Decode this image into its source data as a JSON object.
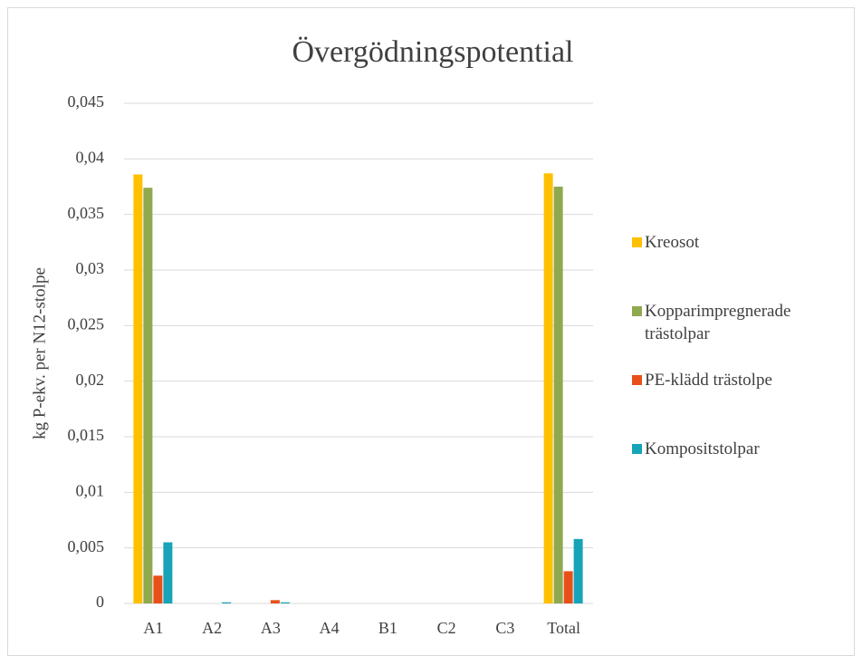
{
  "chart_data": {
    "type": "bar",
    "title": "Övergödningspotential",
    "y_label": "kg P-ekv. per N12-stolpe",
    "categories": [
      "A1",
      "A2",
      "A3",
      "A4",
      "B1",
      "C2",
      "C3",
      "Total"
    ],
    "series": [
      {
        "name": "Kreosot",
        "color": "#ffc000",
        "values": [
          0.0386,
          0,
          0,
          0,
          0,
          0,
          0,
          0.0387
        ]
      },
      {
        "name": "Kopparimpregnerade trästolpar",
        "color": "#8fa94f",
        "values": [
          0.0374,
          0,
          0,
          0,
          0,
          0,
          0,
          0.0375
        ]
      },
      {
        "name": "PE-klädd trästolpe",
        "color": "#e8501a",
        "values": [
          0.0025,
          0,
          0.0003,
          0,
          0,
          0,
          0,
          0.0029
        ]
      },
      {
        "name": "Kompositstolpar",
        "color": "#17a3b8",
        "values": [
          0.0055,
          0.0001,
          0.0001,
          0,
          0,
          0,
          0,
          0.0058
        ]
      }
    ],
    "ylim": [
      0,
      0.045
    ],
    "yticks": [
      0,
      {
        "value": 0.005,
        "label": "0,005"
      },
      {
        "value": 0.01,
        "label": "0,01"
      },
      {
        "value": 0.015,
        "label": "0,015"
      },
      {
        "value": 0.02,
        "label": "0,02"
      },
      {
        "value": 0.025,
        "label": "0,025"
      },
      {
        "value": 0.03,
        "label": "0,03"
      },
      {
        "value": 0.035,
        "label": "0,035"
      },
      {
        "value": 0.04,
        "label": "0,04"
      },
      {
        "value": 0.045,
        "label": "0,045"
      }
    ],
    "grid": true,
    "legend": "right"
  }
}
